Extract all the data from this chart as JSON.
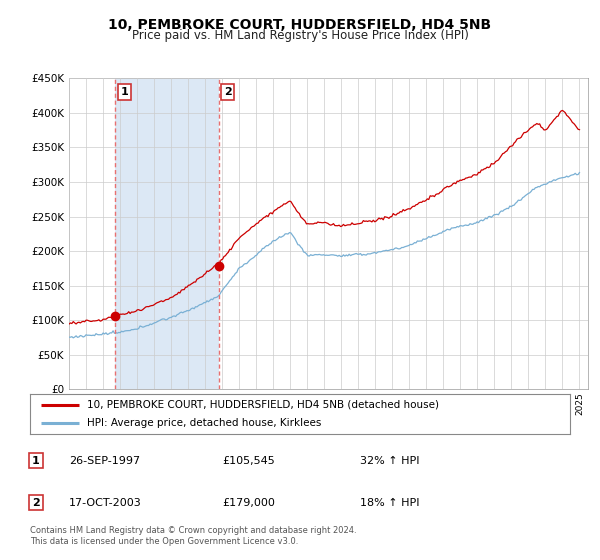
{
  "title": "10, PEMBROKE COURT, HUDDERSFIELD, HD4 5NB",
  "subtitle": "Price paid vs. HM Land Registry's House Price Index (HPI)",
  "ylim": [
    0,
    450000
  ],
  "yticks": [
    0,
    50000,
    100000,
    150000,
    200000,
    250000,
    300000,
    350000,
    400000,
    450000
  ],
  "sale1": {
    "date_num": 1997.73,
    "price": 105545,
    "label": "1"
  },
  "sale2": {
    "date_num": 2003.79,
    "price": 179000,
    "label": "2"
  },
  "xmin": 1995,
  "xmax": 2025.5,
  "legend_line1": "10, PEMBROKE COURT, HUDDERSFIELD, HD4 5NB (detached house)",
  "legend_line2": "HPI: Average price, detached house, Kirklees",
  "table_rows": [
    {
      "num": "1",
      "date": "26-SEP-1997",
      "price": "£105,545",
      "hpi": "32% ↑ HPI"
    },
    {
      "num": "2",
      "date": "17-OCT-2003",
      "price": "£179,000",
      "hpi": "18% ↑ HPI"
    }
  ],
  "footer": "Contains HM Land Registry data © Crown copyright and database right 2024.\nThis data is licensed under the Open Government Licence v3.0.",
  "price_color": "#cc0000",
  "hpi_color": "#7ab0d4",
  "vline_color": "#e87070",
  "shade_color": "#dce8f5",
  "bg_color": "#ffffff",
  "grid_color": "#cccccc"
}
